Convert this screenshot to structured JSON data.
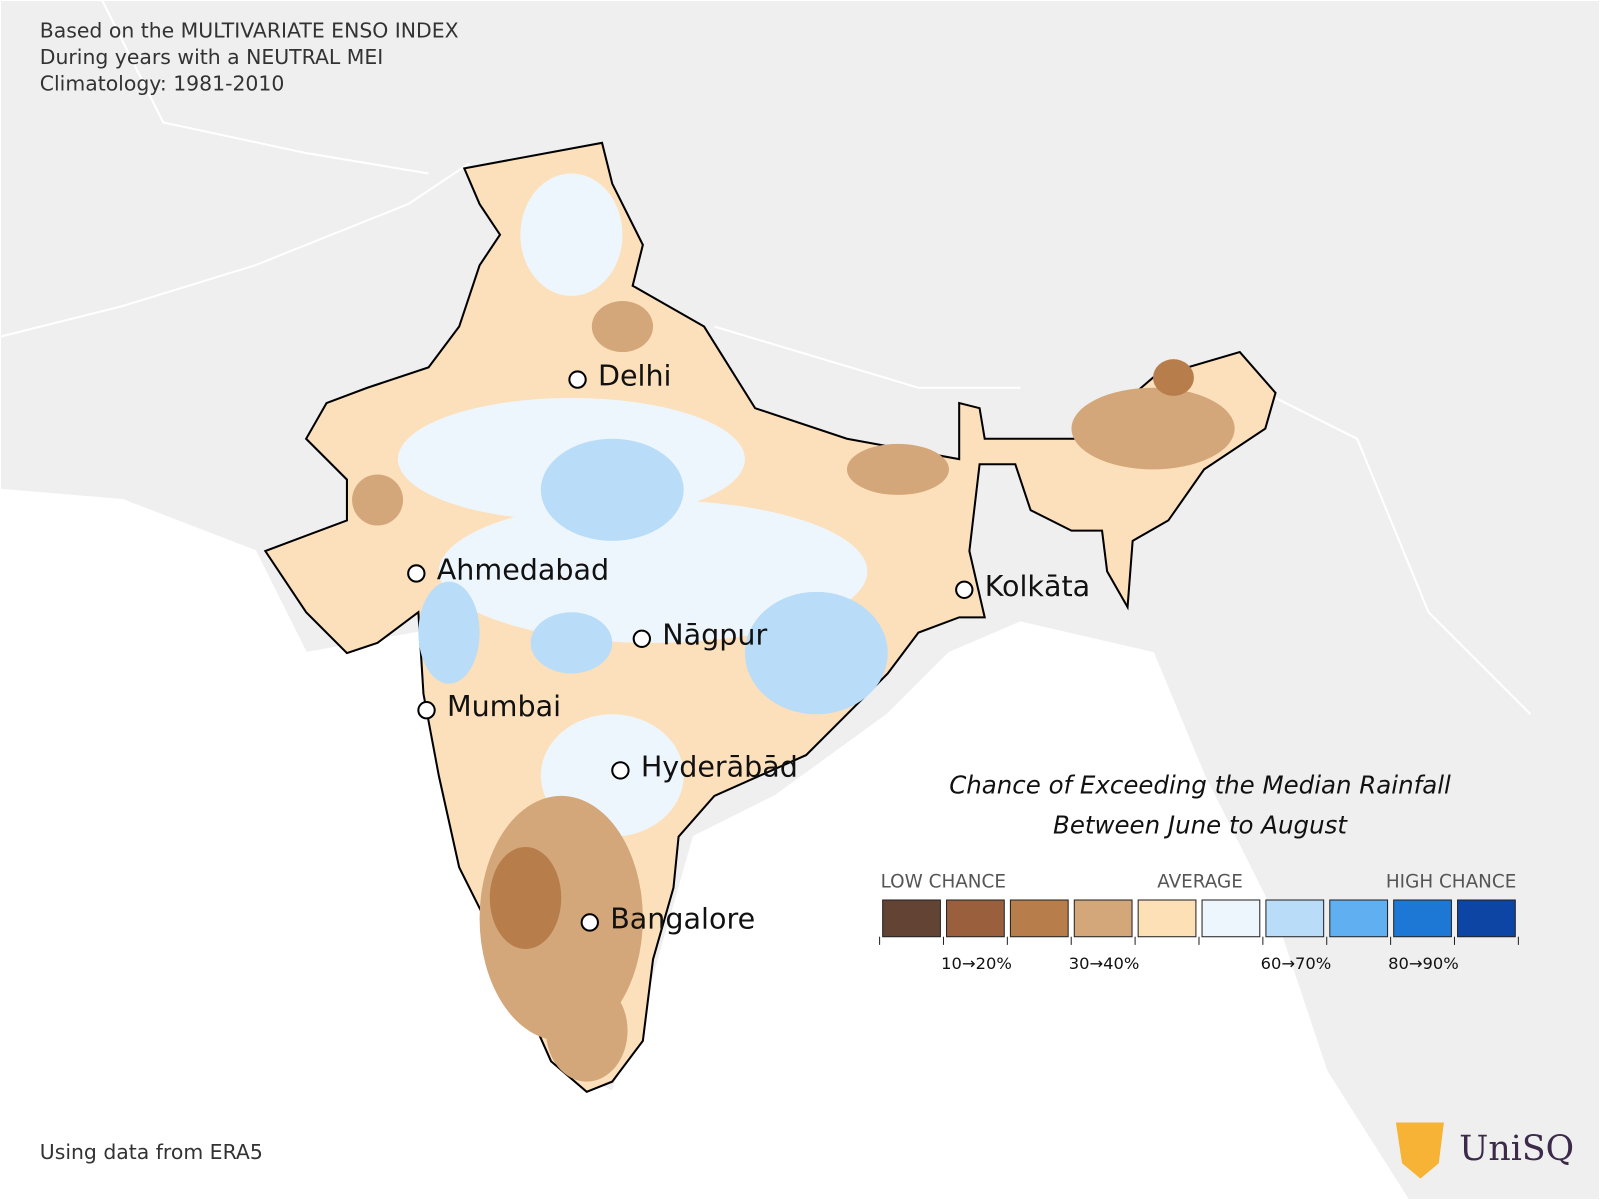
{
  "header": {
    "lines": [
      "Based on the MULTIVARIATE ENSO INDEX",
      "During years with a NEUTRAL MEI",
      "Climatology: 1981-2010"
    ]
  },
  "cities": [
    "Delhi",
    "Ahmedabad",
    "Kolkāta",
    "Nāgpur",
    "Mumbai",
    "Hyderābād",
    "Bangalore"
  ],
  "legend": {
    "title": [
      "Chance of Exceeding the Median Rainfall",
      "Between June to August"
    ],
    "categories": [
      "LOW CHANCE",
      "AVERAGE",
      "HIGH CHANCE"
    ],
    "colors": [
      "#634333",
      "#9a5f3c",
      "#b77d4a",
      "#d3a77a",
      "#fde0b5",
      "#eef6fd",
      "#b9dcf8",
      "#60b0f1",
      "#1c78d4",
      "#0d45a4"
    ],
    "tick_labels": [
      "10→20%",
      "30→40%",
      "60→70%",
      "80→90%"
    ]
  },
  "footer": {
    "source": "Using data from ERA5",
    "logo": "UniSQ"
  }
}
